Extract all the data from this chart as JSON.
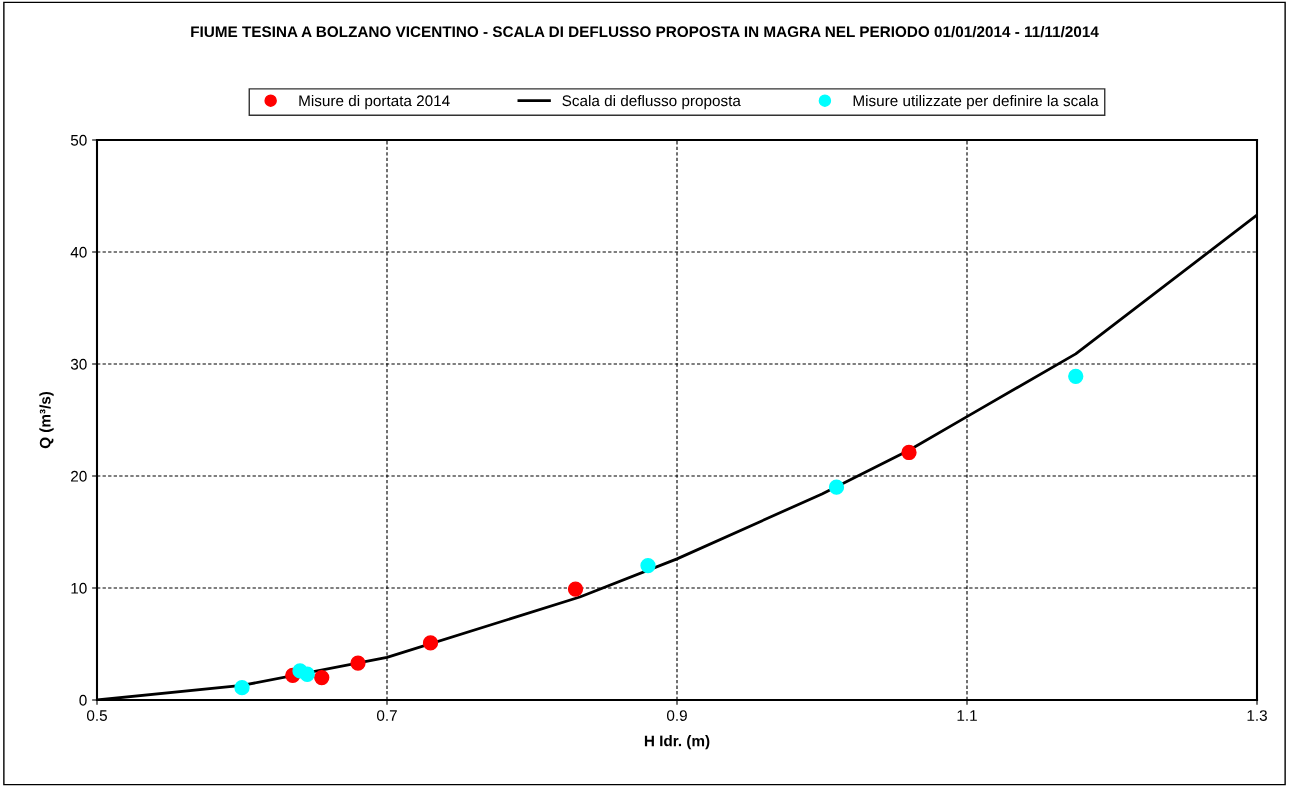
{
  "chart_data": {
    "type": "scatter",
    "title": "FIUME TESINA A BOLZANO VICENTINO - SCALA DI DEFLUSSO PROPOSTA IN MAGRA NEL PERIODO 01/01/2014 - 11/11/2014",
    "xlabel": "H Idr. (m)",
    "ylabel": "Q (m³/s)",
    "series": [
      {
        "name": "Misure di portata 2014",
        "marker": "circle",
        "color": "#ff0000",
        "x": [
          0.635,
          0.655,
          0.68,
          0.73,
          0.83,
          1.06
        ],
        "values": [
          2.2,
          2.0,
          3.3,
          5.1,
          9.9,
          22.1
        ]
      },
      {
        "name": "Scala di deflusso proposta",
        "type": "line",
        "marker": "none",
        "color": "#000000",
        "x": [
          0.5,
          0.6,
          0.7,
          0.833,
          0.9,
          1.0,
          1.06,
          1.1,
          1.175,
          1.3
        ],
        "values": [
          0,
          1.3,
          3.8,
          9.2,
          12.6,
          18.4,
          22.3,
          25.3,
          30.9,
          43.3
        ]
      },
      {
        "name": "Misure utilizzate per definire la scala",
        "marker": "circle",
        "color": "#00ffff",
        "x": [
          0.6,
          0.64,
          0.645,
          0.88,
          1.01,
          1.175
        ],
        "values": [
          1.1,
          2.6,
          2.3,
          12.0,
          19.0,
          28.9
        ]
      }
    ],
    "xlim": [
      0.5,
      1.3
    ],
    "xticks": [
      0.5,
      0.7,
      0.9,
      1.1,
      1.3
    ],
    "ylim": [
      0,
      50
    ],
    "yticks": [
      0,
      10,
      20,
      30,
      40,
      50
    ],
    "grid": true,
    "legend": "top"
  }
}
